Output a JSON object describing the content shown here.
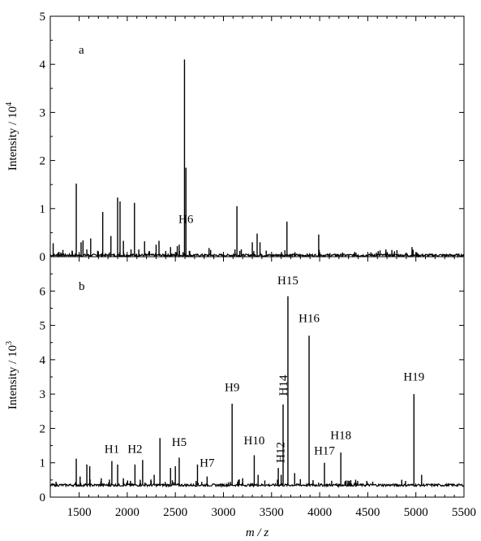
{
  "figure": {
    "xlabel": "m / z",
    "xlim": [
      1200,
      5500
    ],
    "xticks": [
      1500,
      2000,
      2500,
      3000,
      3500,
      4000,
      4500,
      5000,
      5500
    ]
  },
  "chart_data": [
    {
      "type": "line",
      "panel_label": "a",
      "ylabel": "Intensity / 10",
      "ylabel_exponent": "4",
      "ylim": [
        0,
        5
      ],
      "yticks": [
        0,
        1,
        2,
        3,
        4,
        5
      ],
      "xlim": [
        1200,
        5500
      ],
      "baseline": 0.03,
      "peaks": [
        {
          "x": 1230,
          "y": 0.28
        },
        {
          "x": 1290,
          "y": 0.1
        },
        {
          "x": 1470,
          "y": 1.52
        },
        {
          "x": 1520,
          "y": 0.3
        },
        {
          "x": 1540,
          "y": 0.34
        },
        {
          "x": 1580,
          "y": 0.15
        },
        {
          "x": 1620,
          "y": 0.38
        },
        {
          "x": 1700,
          "y": 0.1
        },
        {
          "x": 1745,
          "y": 0.93
        },
        {
          "x": 1830,
          "y": 0.43
        },
        {
          "x": 1900,
          "y": 1.23
        },
        {
          "x": 1925,
          "y": 1.15
        },
        {
          "x": 1960,
          "y": 0.33
        },
        {
          "x": 2075,
          "y": 1.12
        },
        {
          "x": 2120,
          "y": 0.15
        },
        {
          "x": 2180,
          "y": 0.32
        },
        {
          "x": 2300,
          "y": 0.25
        },
        {
          "x": 2330,
          "y": 0.33
        },
        {
          "x": 2400,
          "y": 0.12
        },
        {
          "x": 2450,
          "y": 0.2
        },
        {
          "x": 2520,
          "y": 0.22
        },
        {
          "x": 2540,
          "y": 0.25
        },
        {
          "x": 2595,
          "y": 4.1
        },
        {
          "x": 2610,
          "y": 1.85
        },
        {
          "x": 2650,
          "y": 0.12
        },
        {
          "x": 2850,
          "y": 0.18
        },
        {
          "x": 3140,
          "y": 1.05
        },
        {
          "x": 3170,
          "y": 0.12
        },
        {
          "x": 3300,
          "y": 0.3
        },
        {
          "x": 3350,
          "y": 0.48
        },
        {
          "x": 3380,
          "y": 0.3
        },
        {
          "x": 3660,
          "y": 0.73
        },
        {
          "x": 3990,
          "y": 0.46
        },
        {
          "x": 4960,
          "y": 0.2
        }
      ],
      "annotations": [
        {
          "text": "H6",
          "x": 2610,
          "y": 0.6
        }
      ]
    },
    {
      "type": "line",
      "panel_label": "b",
      "ylabel": "Intensity / 10",
      "ylabel_exponent": "3",
      "ylim": [
        0,
        7
      ],
      "yticks": [
        0,
        1,
        2,
        3,
        4,
        5,
        6
      ],
      "xlim": [
        1200,
        5500
      ],
      "baseline": 0.35,
      "peaks": [
        {
          "x": 1260,
          "y": 0.45
        },
        {
          "x": 1470,
          "y": 1.12
        },
        {
          "x": 1510,
          "y": 0.6
        },
        {
          "x": 1580,
          "y": 0.95
        },
        {
          "x": 1610,
          "y": 0.9
        },
        {
          "x": 1730,
          "y": 0.55
        },
        {
          "x": 1840,
          "y": 1.05
        },
        {
          "x": 1900,
          "y": 0.95
        },
        {
          "x": 1960,
          "y": 0.55
        },
        {
          "x": 2080,
          "y": 0.95
        },
        {
          "x": 2160,
          "y": 1.08
        },
        {
          "x": 2280,
          "y": 0.65
        },
        {
          "x": 2340,
          "y": 1.72
        },
        {
          "x": 2450,
          "y": 0.85
        },
        {
          "x": 2500,
          "y": 0.9
        },
        {
          "x": 2540,
          "y": 1.15
        },
        {
          "x": 2730,
          "y": 0.95
        },
        {
          "x": 2830,
          "y": 0.6
        },
        {
          "x": 3090,
          "y": 2.72
        },
        {
          "x": 3200,
          "y": 0.55
        },
        {
          "x": 3320,
          "y": 1.22
        },
        {
          "x": 3360,
          "y": 0.65
        },
        {
          "x": 3570,
          "y": 0.85
        },
        {
          "x": 3600,
          "y": 0.65
        },
        {
          "x": 3620,
          "y": 2.7
        },
        {
          "x": 3670,
          "y": 5.85
        },
        {
          "x": 3740,
          "y": 0.7
        },
        {
          "x": 3890,
          "y": 4.7
        },
        {
          "x": 4050,
          "y": 1.0
        },
        {
          "x": 4220,
          "y": 1.3
        },
        {
          "x": 4980,
          "y": 3.0
        },
        {
          "x": 5060,
          "y": 0.65
        }
      ],
      "annotations": [
        {
          "text": "H1",
          "x": 1840,
          "y": 1.15
        },
        {
          "text": "H2",
          "x": 2080,
          "y": 1.15
        },
        {
          "text": "H5",
          "x": 2540,
          "y": 1.35
        },
        {
          "text": "H7",
          "x": 2830,
          "y": 0.75
        },
        {
          "text": "H9",
          "x": 3090,
          "y": 2.95
        },
        {
          "text": "H10",
          "x": 3320,
          "y": 1.4
        },
        {
          "text": "H12",
          "x": 3590,
          "y": 0.95
        },
        {
          "text": "H14",
          "x": 3620,
          "y": 2.9
        },
        {
          "text": "H15",
          "x": 3670,
          "y": 6.05
        },
        {
          "text": "H16",
          "x": 3890,
          "y": 4.95
        },
        {
          "text": "H17",
          "x": 4050,
          "y": 1.1
        },
        {
          "text": "H18",
          "x": 4220,
          "y": 1.55
        },
        {
          "text": "H19",
          "x": 4980,
          "y": 3.25
        }
      ]
    }
  ]
}
